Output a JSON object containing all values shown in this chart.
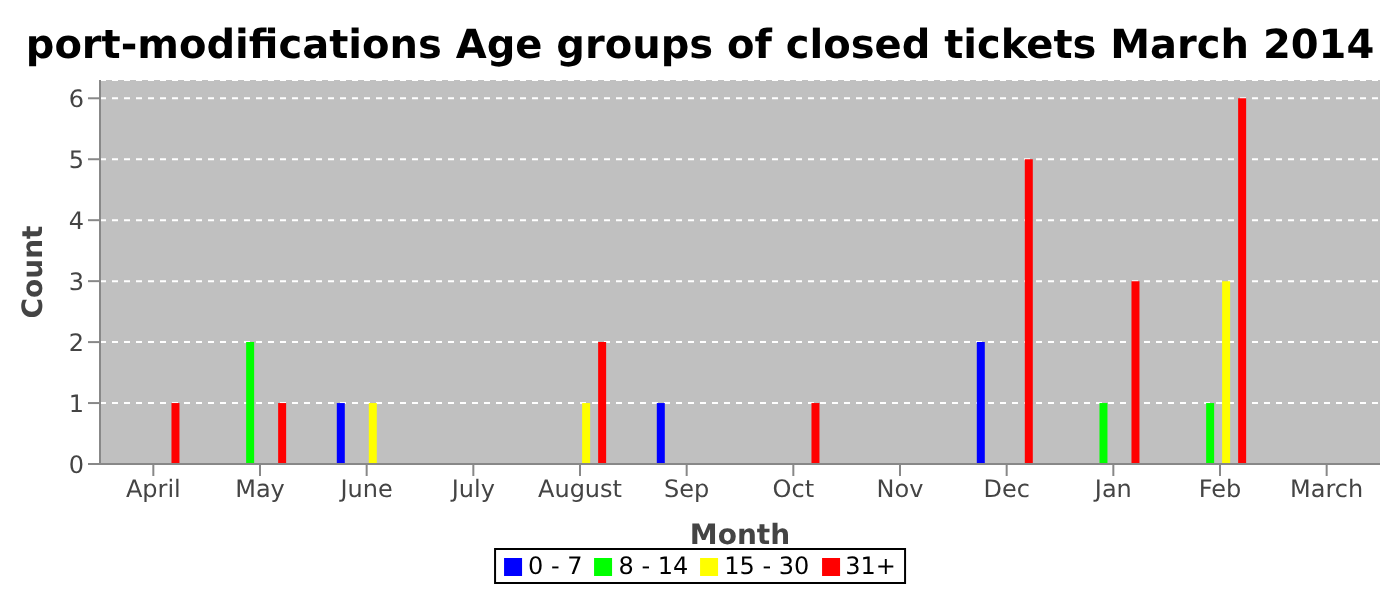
{
  "chart_data": {
    "type": "bar",
    "title": "port-modifications Age groups of closed tickets March 2014",
    "xlabel": "Month",
    "ylabel": "Count",
    "categories": [
      "April",
      "May",
      "June",
      "July",
      "August",
      "Sep",
      "Oct",
      "Nov",
      "Dec",
      "Jan",
      "Feb",
      "March"
    ],
    "series": [
      {
        "name": "0 - 7",
        "color": "#0000ff",
        "values": [
          0,
          0,
          1,
          0,
          0,
          1,
          0,
          0,
          2,
          0,
          0,
          0
        ]
      },
      {
        "name": "8 - 14",
        "color": "#00ff00",
        "values": [
          0,
          2,
          0,
          0,
          0,
          0,
          0,
          0,
          0,
          1,
          1,
          0
        ]
      },
      {
        "name": "15 - 30",
        "color": "#ffff00",
        "values": [
          0,
          0,
          1,
          0,
          1,
          0,
          0,
          0,
          0,
          0,
          3,
          0
        ]
      },
      {
        "name": "31+",
        "color": "#ff0000",
        "values": [
          1,
          1,
          0,
          0,
          2,
          0,
          1,
          0,
          5,
          3,
          6,
          0
        ]
      }
    ],
    "ylim": [
      0,
      6.3
    ],
    "yticks": [
      0,
      1,
      2,
      3,
      4,
      5,
      6
    ],
    "grid": "y",
    "legend": "bottom"
  }
}
